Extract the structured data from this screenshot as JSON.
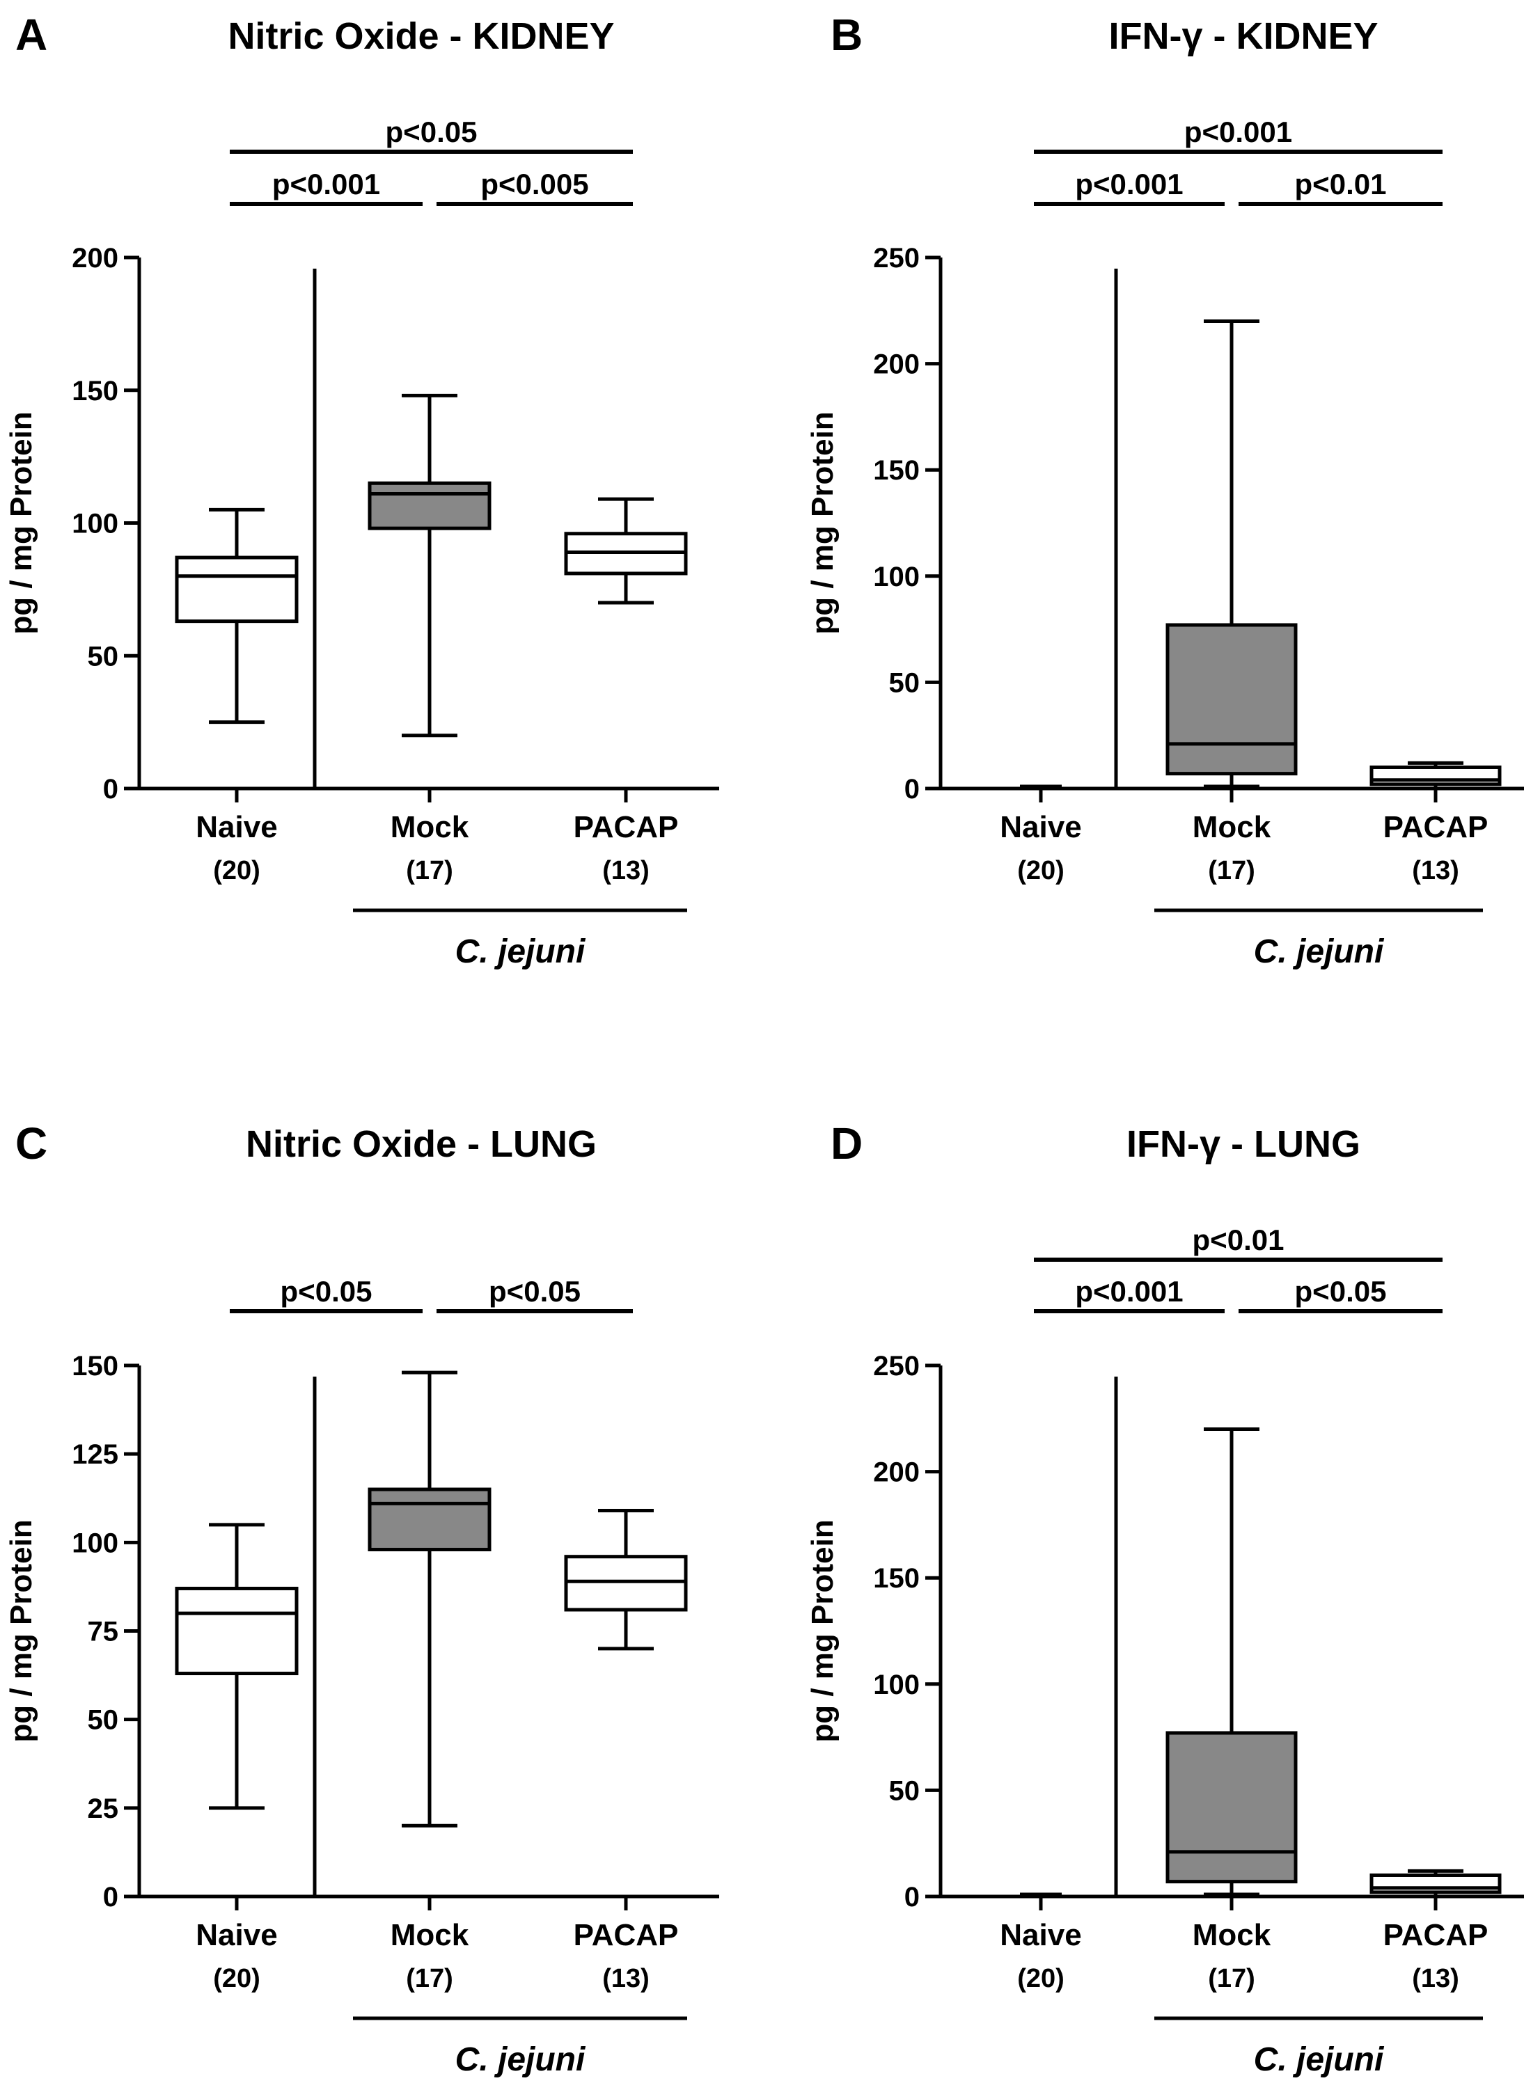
{
  "colors": {
    "filled_box": "#888888",
    "empty_box": "#ffffff",
    "stroke": "#000000"
  },
  "chart_data": [
    {
      "panel": "A",
      "title": "Nitric Oxide - KIDNEY",
      "type": "boxplot",
      "ylabel": "pg / mg Protein",
      "ylim": [
        0,
        200
      ],
      "yticks": [
        0,
        50,
        100,
        150,
        200
      ],
      "categories": [
        "Naive",
        "Mock",
        "PACAP"
      ],
      "n_labels": [
        "(20)",
        "(17)",
        "(13)"
      ],
      "group_label": "C. jejuni",
      "boxes": [
        {
          "name": "Naive",
          "min": 25,
          "q1": 63,
          "median": 80,
          "q3": 87,
          "max": 105,
          "filled": false
        },
        {
          "name": "Mock",
          "min": 20,
          "q1": 98,
          "median": 111,
          "q3": 115,
          "max": 148,
          "filled": true
        },
        {
          "name": "PACAP",
          "min": 70,
          "q1": 81,
          "median": 89,
          "q3": 96,
          "max": 109,
          "filled": false
        }
      ],
      "significance": [
        {
          "label": "p<0.05",
          "from": 0,
          "to": 2,
          "level": 2
        },
        {
          "label": "p<0.001",
          "from": 0,
          "to": 1,
          "level": 1
        },
        {
          "label": "p<0.005",
          "from": 1,
          "to": 2,
          "level": 1
        }
      ]
    },
    {
      "panel": "B",
      "title": "IFN-γ - KIDNEY",
      "type": "boxplot",
      "ylabel": "pg / mg Protein",
      "ylim": [
        0,
        250
      ],
      "yticks": [
        0,
        50,
        100,
        150,
        200,
        250
      ],
      "categories": [
        "Naive",
        "Mock",
        "PACAP"
      ],
      "n_labels": [
        "(20)",
        "(17)",
        "(13)"
      ],
      "group_label": "C. jejuni",
      "boxes": [
        {
          "name": "Naive",
          "min": 0,
          "q1": 0,
          "median": 0,
          "q3": 0,
          "max": 1,
          "filled": false
        },
        {
          "name": "Mock",
          "min": 1,
          "q1": 7,
          "median": 21,
          "q3": 77,
          "max": 220,
          "filled": true
        },
        {
          "name": "PACAP",
          "min": 0,
          "q1": 2,
          "median": 4,
          "q3": 10,
          "max": 12,
          "filled": false
        }
      ],
      "significance": [
        {
          "label": "p<0.001",
          "from": 0,
          "to": 2,
          "level": 2
        },
        {
          "label": "p<0.001",
          "from": 0,
          "to": 1,
          "level": 1
        },
        {
          "label": "p<0.01",
          "from": 1,
          "to": 2,
          "level": 1
        }
      ]
    },
    {
      "panel": "C",
      "title": "Nitric Oxide - LUNG",
      "type": "boxplot",
      "ylabel": "pg / mg Protein",
      "ylim": [
        0,
        150
      ],
      "yticks": [
        0,
        25,
        50,
        75,
        100,
        125,
        150
      ],
      "categories": [
        "Naive",
        "Mock",
        "PACAP"
      ],
      "n_labels": [
        "(20)",
        "(17)",
        "(13)"
      ],
      "group_label": "C. jejuni",
      "boxes": [
        {
          "name": "Naive",
          "min": 25,
          "q1": 63,
          "median": 80,
          "q3": 87,
          "max": 105,
          "filled": false
        },
        {
          "name": "Mock",
          "min": 20,
          "q1": 98,
          "median": 111,
          "q3": 115,
          "max": 148,
          "filled": true
        },
        {
          "name": "PACAP",
          "min": 70,
          "q1": 81,
          "median": 89,
          "q3": 96,
          "max": 109,
          "filled": false
        }
      ],
      "significance": [
        {
          "label": "p<0.05",
          "from": 0,
          "to": 1,
          "level": 1
        },
        {
          "label": "p<0.05",
          "from": 1,
          "to": 2,
          "level": 1
        }
      ]
    },
    {
      "panel": "D",
      "title": "IFN-γ - LUNG",
      "type": "boxplot",
      "ylabel": "pg / mg Protein",
      "ylim": [
        0,
        250
      ],
      "yticks": [
        0,
        50,
        100,
        150,
        200,
        250
      ],
      "categories": [
        "Naive",
        "Mock",
        "PACAP"
      ],
      "n_labels": [
        "(20)",
        "(17)",
        "(13)"
      ],
      "group_label": "C. jejuni",
      "boxes": [
        {
          "name": "Naive",
          "min": 0,
          "q1": 0,
          "median": 0,
          "q3": 0,
          "max": 1,
          "filled": false
        },
        {
          "name": "Mock",
          "min": 1,
          "q1": 7,
          "median": 21,
          "q3": 77,
          "max": 220,
          "filled": true
        },
        {
          "name": "PACAP",
          "min": 0,
          "q1": 2,
          "median": 4,
          "q3": 10,
          "max": 12,
          "filled": false
        }
      ],
      "significance": [
        {
          "label": "p<0.01",
          "from": 0,
          "to": 2,
          "level": 2
        },
        {
          "label": "p<0.001",
          "from": 0,
          "to": 1,
          "level": 1
        },
        {
          "label": "p<0.05",
          "from": 1,
          "to": 2,
          "level": 1
        }
      ]
    }
  ]
}
